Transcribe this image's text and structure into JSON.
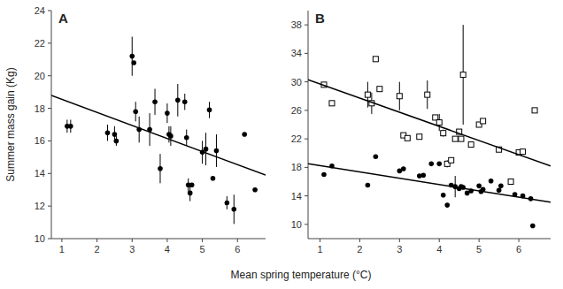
{
  "chart_data": [
    {
      "type": "scatter",
      "title": "A",
      "y_label": "Summer mass gain (Kg)",
      "x_label": "Mean spring temperature (°C)",
      "xlim": [
        0.7,
        6.8
      ],
      "xticks": [
        1,
        2,
        3,
        4,
        5,
        6
      ],
      "ylim": [
        10,
        24
      ],
      "yticks": [
        10,
        12,
        14,
        16,
        18,
        20,
        22,
        24
      ],
      "series": [
        {
          "type": "scatter",
          "marker": "circle",
          "color": "#000000",
          "x": [
            1.15,
            1.25,
            2.3,
            2.5,
            2.55,
            3.0,
            3.05,
            3.1,
            3.2,
            3.5,
            3.65,
            3.8,
            4.0,
            4.05,
            4.1,
            4.3,
            4.5,
            4.55,
            4.6,
            4.65,
            4.7,
            5.0,
            5.1,
            5.2,
            5.3,
            5.4,
            5.7,
            5.9,
            6.2,
            6.5
          ],
          "values": [
            16.9,
            16.9,
            16.5,
            16.4,
            16.0,
            21.2,
            20.8,
            17.8,
            16.7,
            16.7,
            18.4,
            14.3,
            17.7,
            16.4,
            16.3,
            18.5,
            18.4,
            16.2,
            13.3,
            12.8,
            13.3,
            15.3,
            15.5,
            17.9,
            13.7,
            15.4,
            12.2,
            11.8,
            16.4,
            13.0
          ],
          "errors": [
            0.4,
            0.4,
            0.5,
            0.5,
            0.3,
            1.2,
            0.0,
            0.6,
            0.8,
            1.0,
            0.8,
            0.9,
            0.6,
            0.5,
            0.6,
            1.0,
            0.5,
            0.5,
            0.4,
            0.5,
            0.0,
            0.7,
            1.0,
            0.5,
            0.0,
            1.0,
            0.4,
            0.9,
            0.0,
            0.0
          ]
        },
        {
          "type": "line",
          "color": "#000000",
          "x": [
            0.7,
            6.8
          ],
          "values": [
            18.8,
            13.9
          ]
        }
      ]
    },
    {
      "type": "scatter",
      "title": "B",
      "xlim": [
        0.7,
        6.8
      ],
      "xticks": [
        1,
        2,
        3,
        4,
        5,
        6
      ],
      "ylim": [
        8,
        40
      ],
      "yticks": [
        10,
        14,
        18,
        22,
        26,
        30,
        34,
        38
      ],
      "series": [
        {
          "type": "scatter",
          "marker": "circle",
          "color": "#000000",
          "x": [
            1.1,
            1.3,
            2.2,
            2.4,
            3.0,
            3.1,
            3.5,
            3.6,
            3.8,
            4.0,
            4.1,
            4.2,
            4.3,
            4.4,
            4.5,
            4.55,
            4.6,
            4.7,
            4.8,
            5.0,
            5.05,
            5.1,
            5.3,
            5.5,
            5.55,
            5.9,
            6.1,
            6.3,
            6.35
          ],
          "values": [
            17.0,
            18.2,
            15.5,
            19.5,
            17.5,
            17.8,
            16.8,
            16.9,
            18.5,
            18.5,
            14.1,
            12.7,
            15.5,
            15.3,
            15.0,
            15.3,
            15.2,
            14.4,
            14.7,
            15.4,
            14.6,
            14.9,
            16.1,
            14.8,
            15.4,
            14.2,
            14.0,
            13.6,
            9.8
          ],
          "errors": [
            0.0,
            0.0,
            0.0,
            0.0,
            0.0,
            0.0,
            0.0,
            0.0,
            0.0,
            0.0,
            0.0,
            0.0,
            0.0,
            1.5,
            0.0,
            0.0,
            0.0,
            0.0,
            0.0,
            0.0,
            0.0,
            0.0,
            0.0,
            0.0,
            0.0,
            0.0,
            0.0,
            0.0,
            0.0
          ]
        },
        {
          "type": "scatter",
          "marker": "square",
          "color": "#000000",
          "x": [
            1.1,
            1.3,
            2.2,
            2.3,
            2.4,
            2.5,
            3.0,
            3.1,
            3.2,
            3.5,
            3.7,
            3.9,
            4.0,
            4.1,
            4.2,
            4.3,
            4.4,
            4.5,
            4.55,
            4.6,
            4.8,
            5.0,
            5.1,
            5.5,
            5.8,
            6.0,
            6.1,
            6.4
          ],
          "values": [
            29.6,
            27.0,
            28.2,
            27.0,
            33.2,
            29.0,
            28.0,
            22.5,
            22.1,
            22.3,
            28.2,
            25.0,
            24.3,
            22.8,
            18.5,
            19.0,
            22.0,
            23.0,
            22.0,
            31.0,
            21.2,
            24.0,
            24.5,
            20.5,
            16.0,
            20.1,
            20.2,
            26.0
          ],
          "errors": [
            0.0,
            0.0,
            1.8,
            1.5,
            0.0,
            0.0,
            2.0,
            0.0,
            0.0,
            0.0,
            2.0,
            0.0,
            1.2,
            0.5,
            0.5,
            0.0,
            0.0,
            0.0,
            0.0,
            7.0,
            0.0,
            0.0,
            0.0,
            0.0,
            0.0,
            0.0,
            0.0,
            0.0
          ]
        },
        {
          "type": "line",
          "color": "#000000",
          "x": [
            0.7,
            6.8
          ],
          "values": [
            18.5,
            13.1
          ]
        },
        {
          "type": "line",
          "color": "#000000",
          "x": [
            0.7,
            6.8
          ],
          "values": [
            30.3,
            18.2
          ]
        }
      ]
    }
  ]
}
